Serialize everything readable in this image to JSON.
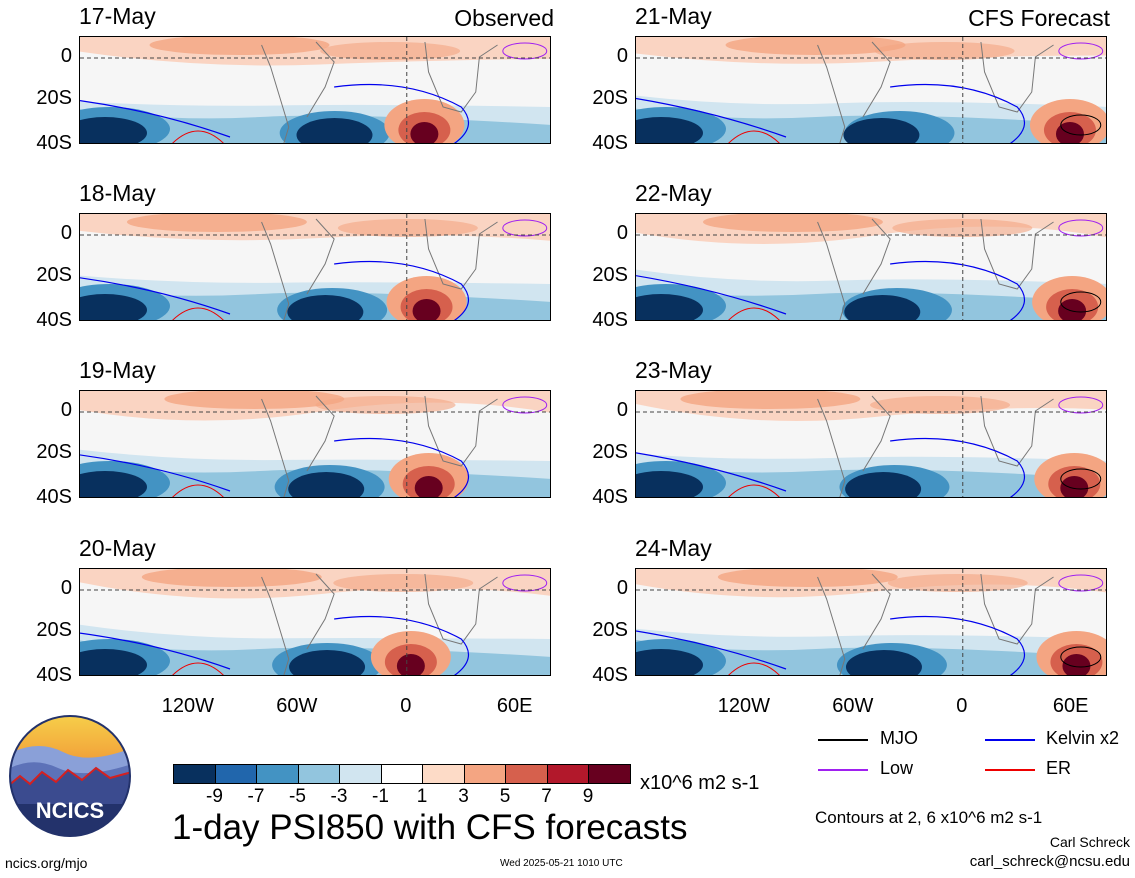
{
  "headers": {
    "left": "Observed",
    "right": "CFS Forecast"
  },
  "panels_left": [
    {
      "date": "17-May"
    },
    {
      "date": "18-May"
    },
    {
      "date": "19-May"
    },
    {
      "date": "20-May"
    }
  ],
  "panels_right": [
    {
      "date": "21-May"
    },
    {
      "date": "22-May"
    },
    {
      "date": "23-May"
    },
    {
      "date": "24-May"
    }
  ],
  "y_ticks": [
    "0",
    "20S",
    "40S"
  ],
  "x_ticks": [
    "120W",
    "60W",
    "0",
    "60E"
  ],
  "legend": {
    "mjo": "MJO",
    "kelvin": "Kelvin x2",
    "low": "Low",
    "er": "ER",
    "colors": {
      "mjo": "#000000",
      "kelvin": "#0000ee",
      "low": "#a020f0",
      "er": "#ee0000"
    }
  },
  "colorbar": {
    "labels": [
      "-9",
      "-7",
      "-5",
      "-3",
      "-1",
      "1",
      "3",
      "5",
      "7",
      "9"
    ],
    "colors": [
      "#08305e",
      "#2166ac",
      "#4393c3",
      "#92c5de",
      "#d1e5f0",
      "#ffffff",
      "#fddbc7",
      "#f4a582",
      "#d6604d",
      "#b2182b",
      "#67001f"
    ],
    "units": "x10^6 m2 s-1"
  },
  "title": "1-day PSI850 with CFS forecasts",
  "contours_note": "Contours at 2, 6 x10^6 m2 s-1",
  "author": "Carl Schreck",
  "email": "carl_schreck@ncsu.edu",
  "website": "ncics.org/mjo",
  "timestamp": "Wed 2025-05-21 1010 UTC",
  "logo_text": "NCICS"
}
